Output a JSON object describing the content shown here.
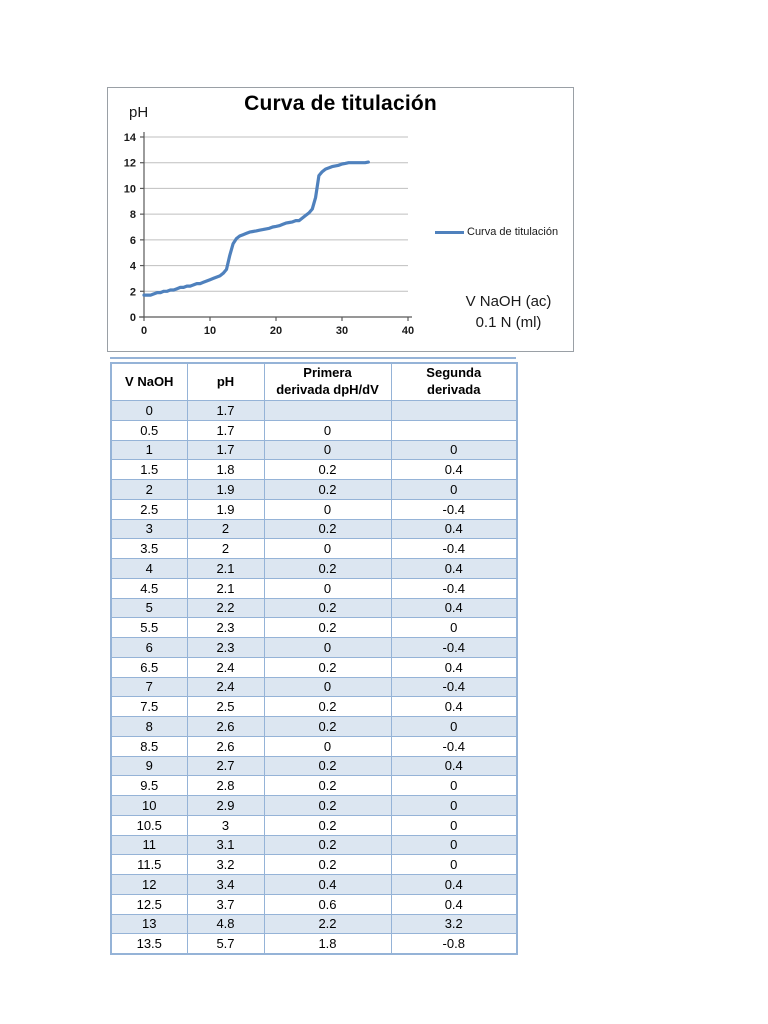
{
  "chart": {
    "title": "Curva de titulación",
    "y_axis_label": "pH",
    "x_axis_label_line1": "V NaOH (ac)",
    "x_axis_label_line2": "0.1 N (ml)",
    "legend": "Curva de titulación",
    "line_color": "#4F81BD",
    "grid_color": "#BFBFBF",
    "axis_color": "#595959",
    "tick_label_color": "#1a1a1a"
  },
  "chart_data": {
    "type": "line",
    "title": "Curva de titulación",
    "xlabel": "V NaOH (ac) 0.1 N (ml)",
    "ylabel": "pH",
    "xlim": [
      0,
      40
    ],
    "ylim": [
      0,
      14
    ],
    "x_ticks": [
      0,
      10,
      20,
      30,
      40
    ],
    "y_ticks": [
      0,
      2,
      4,
      6,
      8,
      10,
      12,
      14
    ],
    "grid": true,
    "legend_position": "right",
    "series": [
      {
        "name": "Curva de titulación",
        "x": [
          0,
          0.5,
          1,
          1.5,
          2,
          2.5,
          3,
          3.5,
          4,
          4.5,
          5,
          5.5,
          6,
          6.5,
          7,
          7.5,
          8,
          8.5,
          9,
          9.5,
          10,
          10.5,
          11,
          11.5,
          12,
          12.5,
          13,
          13.5,
          14,
          14.5,
          15,
          15.5,
          16,
          16.5,
          17,
          17.5,
          18,
          18.5,
          19,
          19.5,
          20,
          20.5,
          21,
          21.5,
          22,
          22.5,
          23,
          23.5,
          24,
          24.5,
          25,
          25.5,
          26,
          26.5,
          27,
          27.5,
          28,
          28.5,
          29,
          29.5,
          30,
          30.5,
          31,
          31.5,
          32,
          32.5,
          33,
          33.5,
          34
        ],
        "y": [
          1.7,
          1.7,
          1.7,
          1.8,
          1.9,
          1.9,
          2,
          2,
          2.1,
          2.1,
          2.2,
          2.3,
          2.3,
          2.4,
          2.4,
          2.5,
          2.6,
          2.6,
          2.7,
          2.8,
          2.9,
          3,
          3.1,
          3.2,
          3.4,
          3.7,
          4.8,
          5.7,
          6.1,
          6.3,
          6.4,
          6.5,
          6.6,
          6.65,
          6.7,
          6.75,
          6.8,
          6.85,
          6.9,
          7,
          7.05,
          7.1,
          7.2,
          7.3,
          7.35,
          7.4,
          7.5,
          7.5,
          7.7,
          7.9,
          8.1,
          8.4,
          9.3,
          11,
          11.3,
          11.5,
          11.6,
          11.7,
          11.75,
          11.8,
          11.9,
          11.95,
          12,
          12,
          12,
          12,
          12,
          12,
          12.05
        ]
      }
    ]
  },
  "table": {
    "band_color": "#DCE6F1",
    "border_color": "#95B3D7",
    "headers": [
      "V NaOH",
      "pH",
      "Primera\nderivada dpH/dV",
      "Segunda\nderivada"
    ],
    "rows": [
      [
        "0",
        "1.7",
        "",
        ""
      ],
      [
        "0.5",
        "1.7",
        "0",
        ""
      ],
      [
        "1",
        "1.7",
        "0",
        "0"
      ],
      [
        "1.5",
        "1.8",
        "0.2",
        "0.4"
      ],
      [
        "2",
        "1.9",
        "0.2",
        "0"
      ],
      [
        "2.5",
        "1.9",
        "0",
        "-0.4"
      ],
      [
        "3",
        "2",
        "0.2",
        "0.4"
      ],
      [
        "3.5",
        "2",
        "0",
        "-0.4"
      ],
      [
        "4",
        "2.1",
        "0.2",
        "0.4"
      ],
      [
        "4.5",
        "2.1",
        "0",
        "-0.4"
      ],
      [
        "5",
        "2.2",
        "0.2",
        "0.4"
      ],
      [
        "5.5",
        "2.3",
        "0.2",
        "0"
      ],
      [
        "6",
        "2.3",
        "0",
        "-0.4"
      ],
      [
        "6.5",
        "2.4",
        "0.2",
        "0.4"
      ],
      [
        "7",
        "2.4",
        "0",
        "-0.4"
      ],
      [
        "7.5",
        "2.5",
        "0.2",
        "0.4"
      ],
      [
        "8",
        "2.6",
        "0.2",
        "0"
      ],
      [
        "8.5",
        "2.6",
        "0",
        "-0.4"
      ],
      [
        "9",
        "2.7",
        "0.2",
        "0.4"
      ],
      [
        "9.5",
        "2.8",
        "0.2",
        "0"
      ],
      [
        "10",
        "2.9",
        "0.2",
        "0"
      ],
      [
        "10.5",
        "3",
        "0.2",
        "0"
      ],
      [
        "11",
        "3.1",
        "0.2",
        "0"
      ],
      [
        "11.5",
        "3.2",
        "0.2",
        "0"
      ],
      [
        "12",
        "3.4",
        "0.4",
        "0.4"
      ],
      [
        "12.5",
        "3.7",
        "0.6",
        "0.4"
      ],
      [
        "13",
        "4.8",
        "2.2",
        "3.2"
      ],
      [
        "13.5",
        "5.7",
        "1.8",
        "-0.8"
      ]
    ]
  }
}
